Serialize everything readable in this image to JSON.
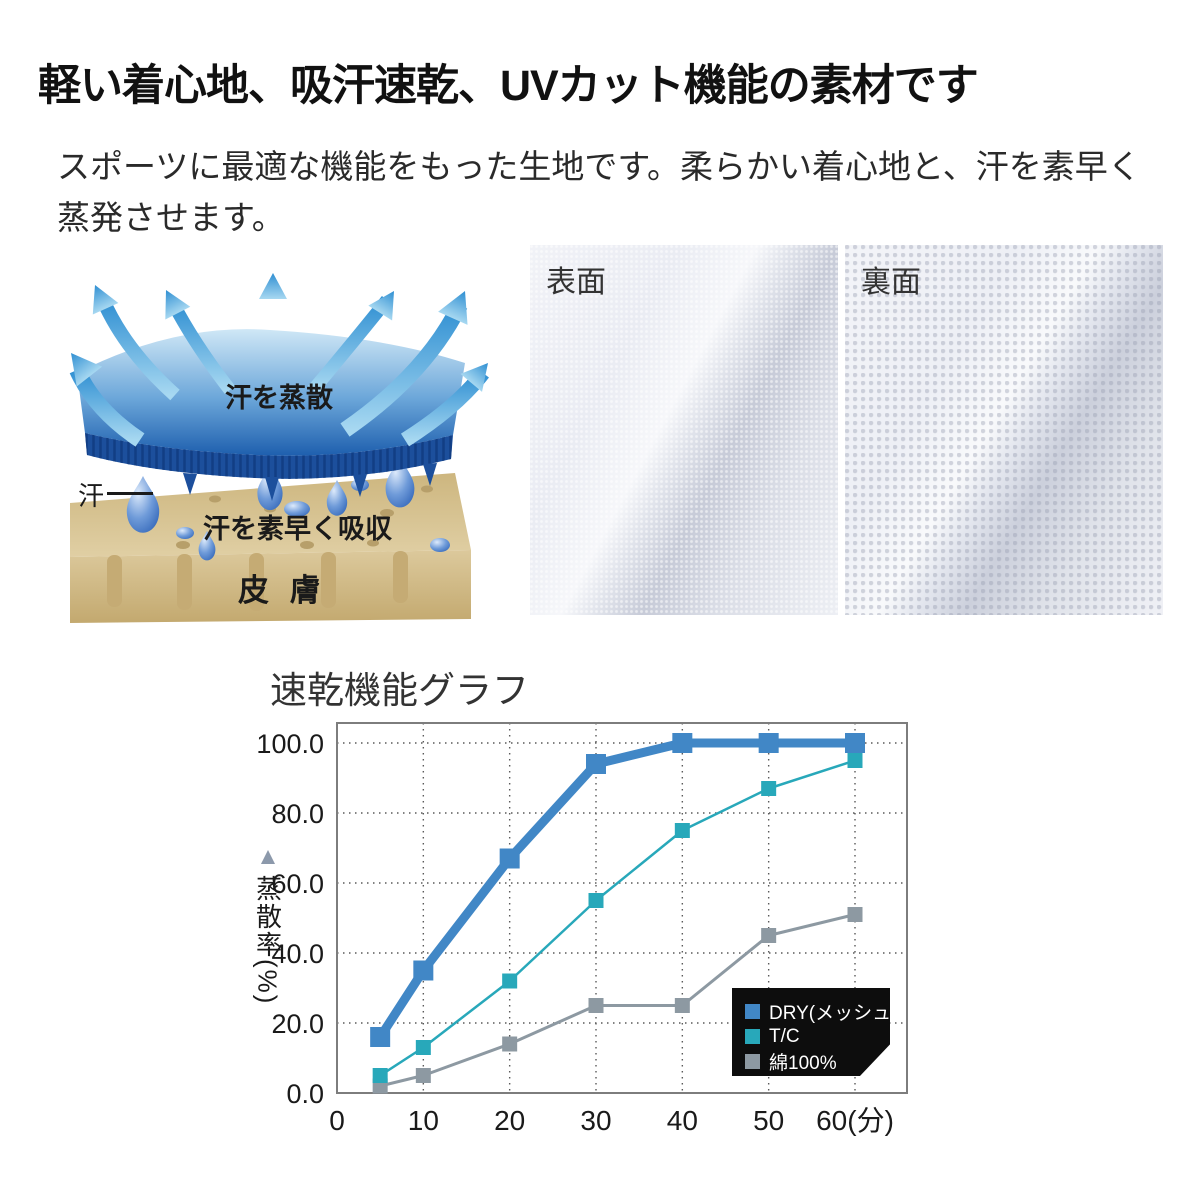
{
  "page": {
    "title": "軽い着心地、吸汗速乾、UVカット機能の素材です",
    "description": "スポーツに最適な機能をもった生地です。柔らかい着心地と、汗を素早く蒸発させます。"
  },
  "diagram": {
    "label_evaporate": "汗を蒸散",
    "label_sweat": "汗",
    "label_absorb": "汗を素早く吸収",
    "label_skin": "皮 膚",
    "colors": {
      "arrow_blue": "#3f97d5",
      "fabric_light": "#bcdcf2",
      "fabric_dark": "#1e5fae",
      "fringe_navy": "#1c4f9c",
      "skin_tan": "#d8c496",
      "droplet_blue": "#3069c0"
    }
  },
  "photos": [
    {
      "label": "表面"
    },
    {
      "label": "裏面"
    }
  ],
  "chart_data": {
    "type": "line",
    "title": "速乾機能グラフ",
    "ylabel": "蒸散率(%)",
    "ylabel_arrow": "▲",
    "xlabel_unit": "分",
    "x": [
      5,
      10,
      20,
      30,
      40,
      50,
      60
    ],
    "series": [
      {
        "name": "DRY(メッシュ)",
        "color": "#4187c6",
        "values": [
          16,
          35,
          67,
          94,
          100,
          100,
          100
        ]
      },
      {
        "name": "T/C",
        "color": "#28a8ba",
        "values": [
          5,
          13,
          32,
          55,
          75,
          87,
          95
        ]
      },
      {
        "name": "綿100%",
        "color": "#8d99a2",
        "values": [
          2,
          5,
          14,
          25,
          25,
          45,
          51
        ]
      }
    ],
    "x_ticks": [
      {
        "value": 0,
        "label": "0"
      },
      {
        "value": 10,
        "label": "10"
      },
      {
        "value": 20,
        "label": "20"
      },
      {
        "value": 30,
        "label": "30"
      },
      {
        "value": 40,
        "label": "40"
      },
      {
        "value": 50,
        "label": "50"
      },
      {
        "value": 60,
        "label": "60(分)"
      }
    ],
    "y_ticks": [
      {
        "value": 0,
        "label": "0.0"
      },
      {
        "value": 20,
        "label": "20.0"
      },
      {
        "value": 40,
        "label": "40.0"
      },
      {
        "value": 60,
        "label": "60.0"
      },
      {
        "value": 80,
        "label": "80.0"
      },
      {
        "value": 100,
        "label": "100.0"
      }
    ],
    "xlim": [
      0,
      66
    ],
    "ylim": [
      0,
      105.7
    ],
    "grid": true,
    "legend_position": "lower-right",
    "legend_bg": "#0d0d0d"
  }
}
